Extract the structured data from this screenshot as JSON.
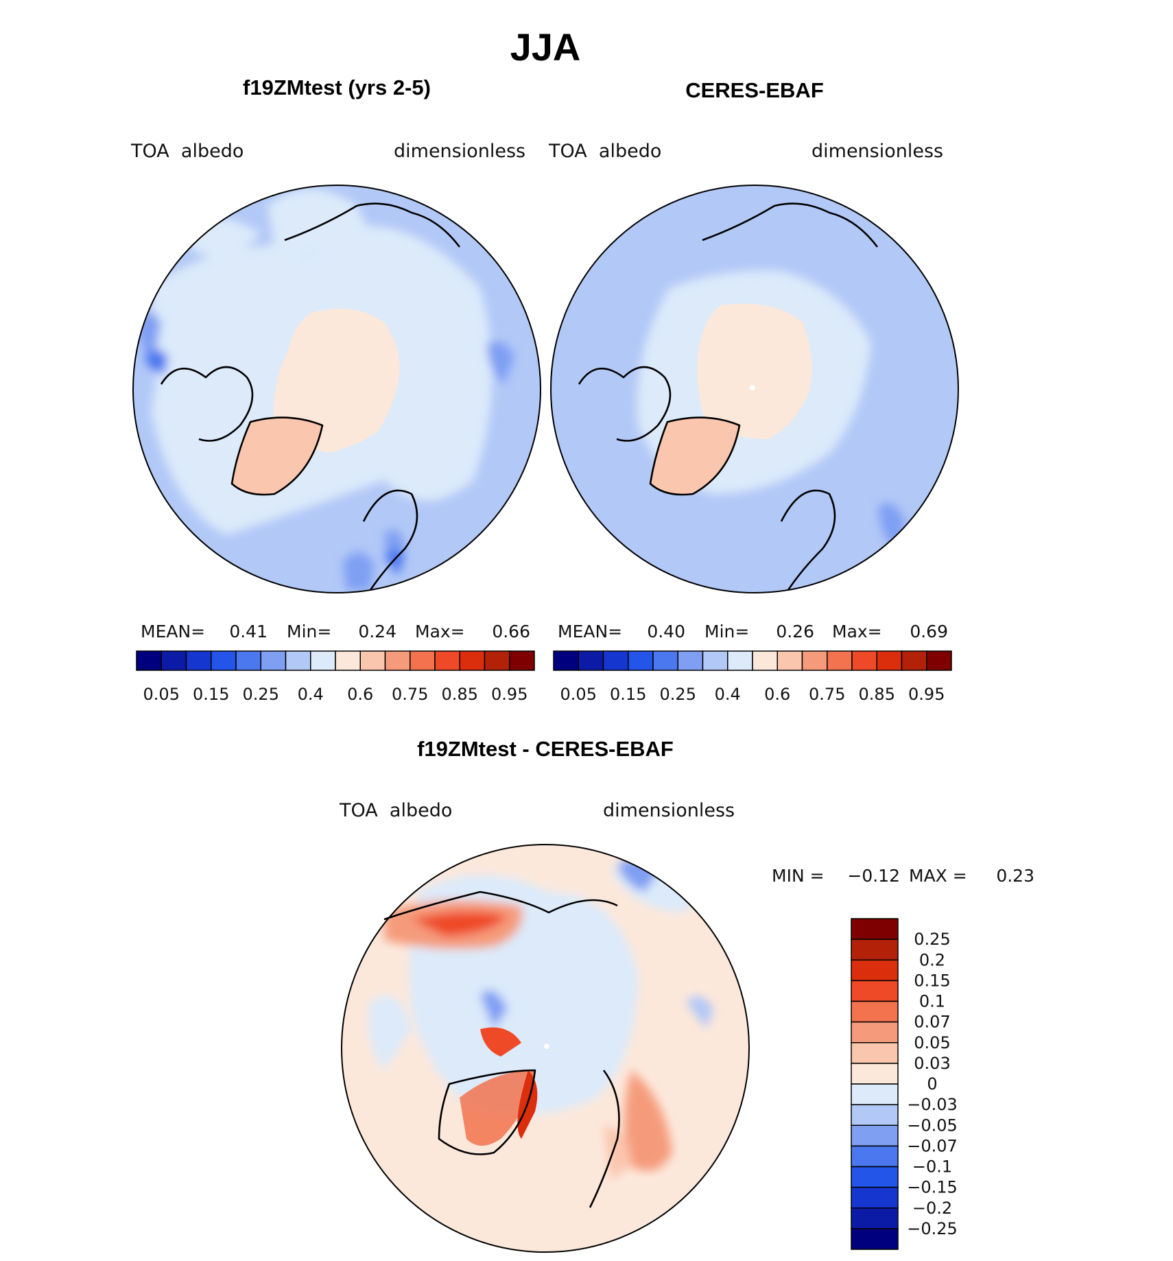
{
  "chart_data": {
    "type": "polar-contour-map",
    "title": "JJA",
    "panels": [
      {
        "id": "model",
        "title": "f19ZMtest (yrs 2-5)",
        "variable": "TOA  albedo",
        "units": "dimensionless",
        "stats": {
          "mean_label": "MEAN=",
          "mean": "0.41",
          "min_label": "Min=",
          "min": "0.24",
          "max_label": "Max=",
          "max": "0.66"
        }
      },
      {
        "id": "obs",
        "title": "CERES-EBAF",
        "variable": "TOA  albedo",
        "units": "dimensionless",
        "stats": {
          "mean_label": "MEAN=",
          "mean": "0.40",
          "min_label": "Min=",
          "min": "0.26",
          "max_label": "Max=",
          "max": "0.69"
        }
      },
      {
        "id": "diff",
        "title": "f19ZMtest - CERES-EBAF",
        "variable": "TOA  albedo",
        "units": "dimensionless",
        "stats": {
          "min_label": "MIN =",
          "min": "−0.12",
          "max_label": "MAX =",
          "max": "0.23"
        }
      }
    ],
    "colorbar_levels": [
      "0.05",
      "0.15",
      "0.25",
      "0.4",
      "0.6",
      "0.75",
      "0.85",
      "0.95"
    ],
    "colorbar_colors": [
      "#00007f",
      "#0b1ba6",
      "#1537cf",
      "#2255e8",
      "#4b78ef",
      "#7f9ff3",
      "#b2c8f7",
      "#dceafa",
      "#fce8db",
      "#fbc6ae",
      "#f59b7c",
      "#f2734e",
      "#ef4a28",
      "#db2e0c",
      "#b32208",
      "#7f0000"
    ],
    "diff_levels": [
      "0.25",
      "0.2",
      "0.15",
      "0.1",
      "0.07",
      "0.05",
      "0.03",
      "0",
      "−0.03",
      "−0.05",
      "−0.07",
      "−0.1",
      "−0.15",
      "−0.2",
      "−0.25"
    ],
    "diff_colors": [
      "#7f0000",
      "#b32208",
      "#db2e0c",
      "#ef4a28",
      "#f2734e",
      "#f59b7c",
      "#fbc6ae",
      "#fce8db",
      "#dceafa",
      "#b2c8f7",
      "#7f9ff3",
      "#4b78ef",
      "#2255e8",
      "#1537cf",
      "#0b1ba6",
      "#00007f"
    ]
  }
}
